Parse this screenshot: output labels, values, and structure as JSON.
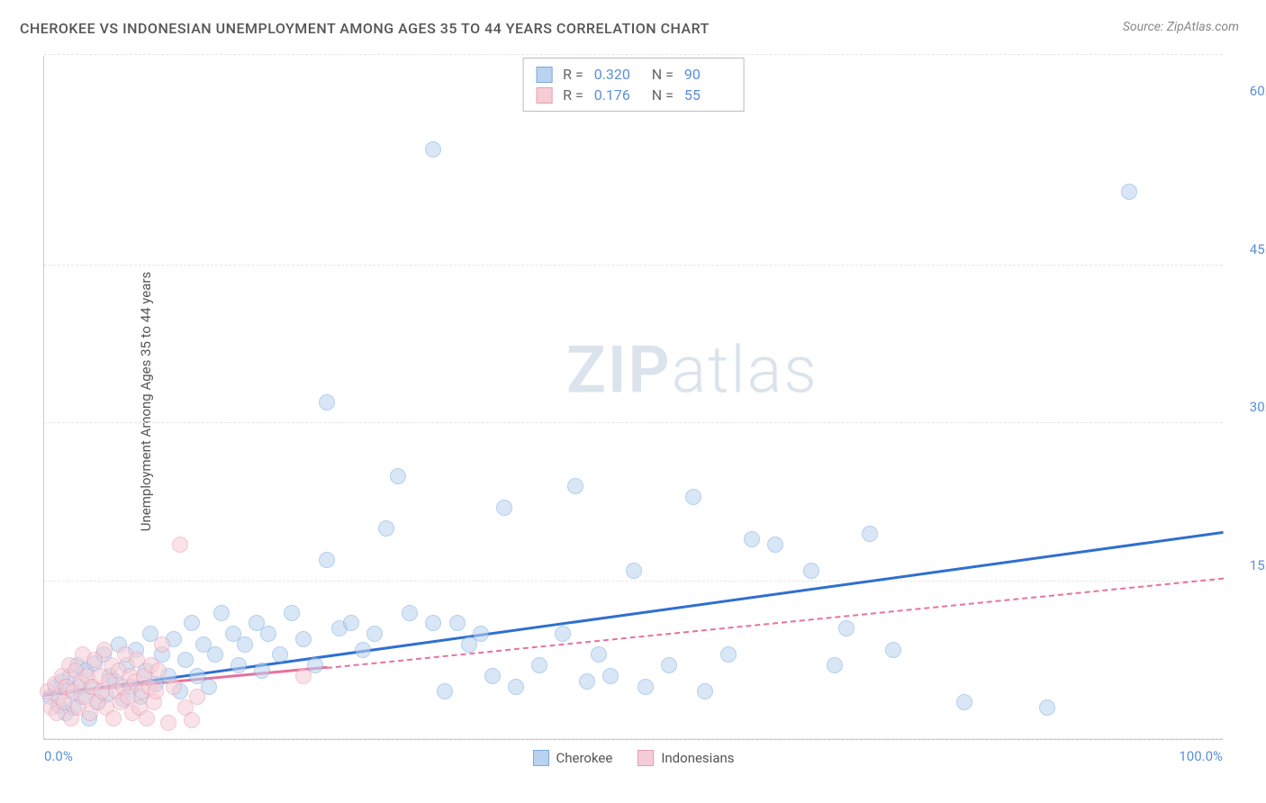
{
  "title": "CHEROKEE VS INDONESIAN UNEMPLOYMENT AMONG AGES 35 TO 44 YEARS CORRELATION CHART",
  "source": "Source: ZipAtlas.com",
  "y_axis_label": "Unemployment Among Ages 35 to 44 years",
  "watermark": {
    "part1": "ZIP",
    "part2": "atlas"
  },
  "chart": {
    "type": "scatter",
    "xlim": [
      0,
      100
    ],
    "ylim": [
      0,
      65
    ],
    "x_ticks": [
      {
        "value": 0,
        "label": "0.0%"
      },
      {
        "value": 100,
        "label": "100.0%"
      }
    ],
    "y_ticks": [
      {
        "value": 15,
        "label": "15.0%"
      },
      {
        "value": 30,
        "label": "30.0%"
      },
      {
        "value": 45,
        "label": "45.0%"
      },
      {
        "value": 60,
        "label": "60.0%"
      }
    ],
    "grid_values": [
      0,
      15,
      30,
      45,
      65
    ],
    "grid_color": "#e5e5e5",
    "background_color": "#ffffff",
    "marker_radius": 9,
    "marker_opacity": 0.55,
    "series": [
      {
        "name": "Cherokee",
        "color_fill": "#b9d3f0",
        "color_stroke": "#7aa8de",
        "trend_color": "#2f6fd0",
        "trend_style": "solid",
        "trend": {
          "x1": 0,
          "y1": 4.0,
          "x2": 100,
          "y2": 19.5
        },
        "R": "0.320",
        "N": "90",
        "points": [
          [
            0.5,
            4
          ],
          [
            1,
            5
          ],
          [
            1.2,
            3.2
          ],
          [
            1.5,
            5.5
          ],
          [
            1.8,
            2.5
          ],
          [
            2,
            4.5
          ],
          [
            2.2,
            6
          ],
          [
            2.5,
            3
          ],
          [
            2.8,
            7
          ],
          [
            3,
            5
          ],
          [
            3.2,
            4
          ],
          [
            3.5,
            6.5
          ],
          [
            3.8,
            2
          ],
          [
            4,
            5
          ],
          [
            4.3,
            7.2
          ],
          [
            4.6,
            3.5
          ],
          [
            5,
            8
          ],
          [
            5.3,
            4.2
          ],
          [
            5.6,
            6
          ],
          [
            6,
            5.5
          ],
          [
            6.3,
            9
          ],
          [
            6.7,
            3.8
          ],
          [
            7,
            7
          ],
          [
            7.4,
            5
          ],
          [
            7.8,
            8.5
          ],
          [
            8.2,
            4
          ],
          [
            8.6,
            6.5
          ],
          [
            9,
            10
          ],
          [
            9.5,
            5.2
          ],
          [
            10,
            8
          ],
          [
            10.5,
            6
          ],
          [
            11,
            9.5
          ],
          [
            11.5,
            4.5
          ],
          [
            12,
            7.5
          ],
          [
            12.5,
            11
          ],
          [
            13,
            6
          ],
          [
            13.5,
            9
          ],
          [
            14,
            5
          ],
          [
            14.5,
            8
          ],
          [
            15,
            12
          ],
          [
            16,
            10
          ],
          [
            16.5,
            7
          ],
          [
            17,
            9
          ],
          [
            18,
            11
          ],
          [
            18.5,
            6.5
          ],
          [
            19,
            10
          ],
          [
            20,
            8
          ],
          [
            21,
            12
          ],
          [
            22,
            9.5
          ],
          [
            23,
            7
          ],
          [
            24,
            17
          ],
          [
            25,
            10.5
          ],
          [
            26,
            11
          ],
          [
            27,
            8.5
          ],
          [
            28,
            10
          ],
          [
            29,
            20
          ],
          [
            30,
            25
          ],
          [
            31,
            12
          ],
          [
            33,
            11
          ],
          [
            34,
            4.5
          ],
          [
            35,
            11
          ],
          [
            36,
            9
          ],
          [
            37,
            10
          ],
          [
            38,
            6
          ],
          [
            39,
            22
          ],
          [
            40,
            5
          ],
          [
            42,
            7
          ],
          [
            44,
            10
          ],
          [
            45,
            24
          ],
          [
            46,
            5.5
          ],
          [
            47,
            8
          ],
          [
            48,
            6
          ],
          [
            50,
            16
          ],
          [
            51,
            5
          ],
          [
            53,
            7
          ],
          [
            55,
            23
          ],
          [
            56,
            4.5
          ],
          [
            58,
            8
          ],
          [
            60,
            19
          ],
          [
            62,
            18.5
          ],
          [
            65,
            16
          ],
          [
            67,
            7
          ],
          [
            68,
            10.5
          ],
          [
            70,
            19.5
          ],
          [
            72,
            8.5
          ],
          [
            78,
            3.5
          ],
          [
            92,
            52
          ],
          [
            33,
            56
          ],
          [
            24,
            32
          ],
          [
            85,
            3
          ]
        ]
      },
      {
        "name": "Indonesians",
        "color_fill": "#f6cdd6",
        "color_stroke": "#e99bb0",
        "trend_color": "#e573a0",
        "trend_style": "solid",
        "trend": {
          "x1": 0,
          "y1": 4.2,
          "x2": 24,
          "y2": 6.7
        },
        "trend_dashed": {
          "x1": 24,
          "y1": 6.7,
          "x2": 100,
          "y2": 15.2
        },
        "R": "0.176",
        "N": "55",
        "points": [
          [
            0.3,
            4.5
          ],
          [
            0.6,
            3
          ],
          [
            0.9,
            5.2
          ],
          [
            1.1,
            2.5
          ],
          [
            1.3,
            4
          ],
          [
            1.5,
            6
          ],
          [
            1.7,
            3.5
          ],
          [
            1.9,
            5
          ],
          [
            2.1,
            7
          ],
          [
            2.3,
            2
          ],
          [
            2.5,
            4.5
          ],
          [
            2.7,
            6.5
          ],
          [
            2.9,
            3
          ],
          [
            3.1,
            5.5
          ],
          [
            3.3,
            8
          ],
          [
            3.5,
            4
          ],
          [
            3.7,
            6
          ],
          [
            3.9,
            2.5
          ],
          [
            4.1,
            5
          ],
          [
            4.3,
            7.5
          ],
          [
            4.5,
            3.5
          ],
          [
            4.7,
            6
          ],
          [
            4.9,
            4.5
          ],
          [
            5.1,
            8.5
          ],
          [
            5.3,
            3
          ],
          [
            5.5,
            5.5
          ],
          [
            5.7,
            7
          ],
          [
            5.9,
            2
          ],
          [
            6.1,
            4.5
          ],
          [
            6.3,
            6.5
          ],
          [
            6.5,
            3.5
          ],
          [
            6.7,
            5
          ],
          [
            6.9,
            8
          ],
          [
            7.1,
            4
          ],
          [
            7.3,
            6
          ],
          [
            7.5,
            2.5
          ],
          [
            7.7,
            5.5
          ],
          [
            7.9,
            7.5
          ],
          [
            8.1,
            3
          ],
          [
            8.3,
            4.5
          ],
          [
            8.5,
            6
          ],
          [
            8.7,
            2
          ],
          [
            8.9,
            5
          ],
          [
            9.1,
            7
          ],
          [
            9.3,
            3.5
          ],
          [
            9.5,
            4.5
          ],
          [
            9.7,
            6.5
          ],
          [
            10,
            9
          ],
          [
            10.5,
            1.5
          ],
          [
            11,
            5
          ],
          [
            11.5,
            18.5
          ],
          [
            12,
            3
          ],
          [
            12.5,
            1.8
          ],
          [
            13,
            4
          ],
          [
            22,
            6
          ]
        ]
      }
    ],
    "stats_labels": {
      "R": "R =",
      "N": "N ="
    },
    "legend": [
      {
        "label": "Cherokee",
        "fill": "#b9d3f0",
        "stroke": "#7aa8de"
      },
      {
        "label": "Indonesians",
        "fill": "#f6cdd6",
        "stroke": "#e99bb0"
      }
    ]
  }
}
